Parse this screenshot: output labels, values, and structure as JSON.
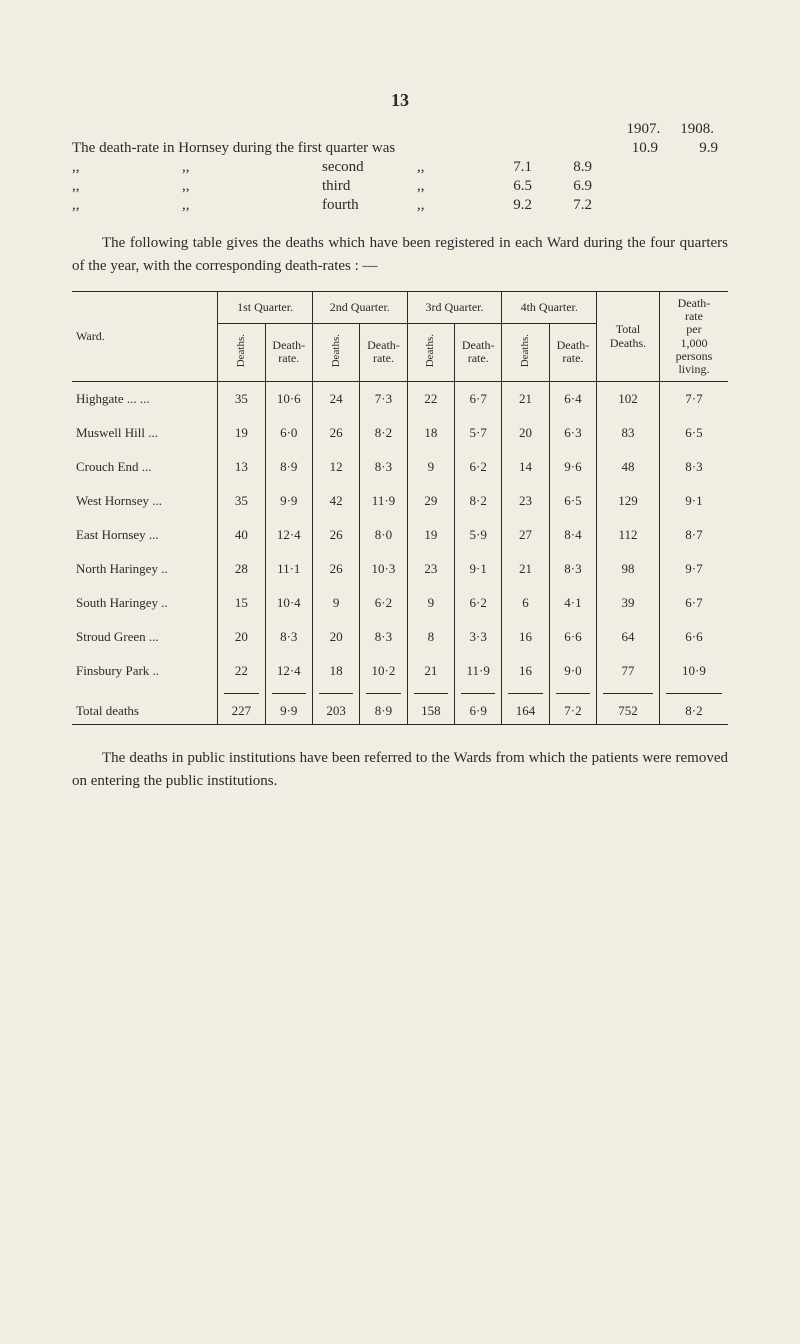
{
  "page_number": "13",
  "years": {
    "y1": "1907.",
    "y2": "1908."
  },
  "intro_first": "The death-rate in Hornsey during the first quarter was",
  "intro_rows": [
    {
      "left": ",,",
      "quote": ",,",
      "label": "second",
      "quote2": ",,",
      "v1": "7.1",
      "v2": "8.9"
    },
    {
      "left": ",,",
      "quote": ",,",
      "label": "third",
      "quote2": ",,",
      "v1": "6.5",
      "v2": "6.9"
    },
    {
      "left": ",,",
      "quote": ",,",
      "label": "fourth",
      "quote2": ",,",
      "v1": "9.2",
      "v2": "7.2"
    }
  ],
  "first_values": {
    "v1": "10.9",
    "v2": "9.9"
  },
  "para1": "The following table gives the deaths which have been registered in each Ward during the four quarters of the year, with the corresponding death-rates : —",
  "table": {
    "ward_header": "Ward.",
    "quarter_headers": [
      "1st Quarter.",
      "2nd Quarter.",
      "3rd Quarter.",
      "4th Quarter."
    ],
    "sub_headers": {
      "deaths": "Deaths.",
      "rate": "Death-\nrate."
    },
    "total_header": "Total\nDeaths.",
    "dr_header": "Death-\nrate\nper\n1,000\npersons\nliving.",
    "rows": [
      {
        "ward": "Highgate ...     ...",
        "q1d": "35",
        "q1r": "10·6",
        "q2d": "24",
        "q2r": "7·3",
        "q3d": "22",
        "q3r": "6·7",
        "q4d": "21",
        "q4r": "6·4",
        "total": "102",
        "dr": "7·7"
      },
      {
        "ward": "Muswell Hill    ...",
        "q1d": "19",
        "q1r": "6·0",
        "q2d": "26",
        "q2r": "8·2",
        "q3d": "18",
        "q3r": "5·7",
        "q4d": "20",
        "q4r": "6·3",
        "total": "83",
        "dr": "6·5"
      },
      {
        "ward": "Crouch End      ...",
        "q1d": "13",
        "q1r": "8·9",
        "q2d": "12",
        "q2r": "8·3",
        "q3d": "9",
        "q3r": "6·2",
        "q4d": "14",
        "q4r": "9·6",
        "total": "48",
        "dr": "8·3"
      },
      {
        "ward": "West Hornsey  ...",
        "q1d": "35",
        "q1r": "9·9",
        "q2d": "42",
        "q2r": "11·9",
        "q3d": "29",
        "q3r": "8·2",
        "q4d": "23",
        "q4r": "6·5",
        "total": "129",
        "dr": "9·1"
      },
      {
        "ward": "East Hornsey   ...",
        "q1d": "40",
        "q1r": "12·4",
        "q2d": "26",
        "q2r": "8·0",
        "q3d": "19",
        "q3r": "5·9",
        "q4d": "27",
        "q4r": "8·4",
        "total": "112",
        "dr": "8·7"
      },
      {
        "ward": "North Haringey ..",
        "q1d": "28",
        "q1r": "11·1",
        "q2d": "26",
        "q2r": "10·3",
        "q3d": "23",
        "q3r": "9·1",
        "q4d": "21",
        "q4r": "8·3",
        "total": "98",
        "dr": "9·7"
      },
      {
        "ward": "South Haringey ..",
        "q1d": "15",
        "q1r": "10·4",
        "q2d": "9",
        "q2r": "6·2",
        "q3d": "9",
        "q3r": "6·2",
        "q4d": "6",
        "q4r": "4·1",
        "total": "39",
        "dr": "6·7"
      },
      {
        "ward": "Stroud Green    ...",
        "q1d": "20",
        "q1r": "8·3",
        "q2d": "20",
        "q2r": "8·3",
        "q3d": "8",
        "q3r": "3·3",
        "q4d": "16",
        "q4r": "6·6",
        "total": "64",
        "dr": "6·6"
      },
      {
        "ward": "Finsbury Park  ..",
        "q1d": "22",
        "q1r": "12·4",
        "q2d": "18",
        "q2r": "10·2",
        "q3d": "21",
        "q3r": "11·9",
        "q4d": "16",
        "q4r": "9·0",
        "total": "77",
        "dr": "10·9"
      }
    ],
    "total_row": {
      "label": "Total deaths",
      "q1d": "227",
      "q1r": "9·9",
      "q2d": "203",
      "q2r": "8·9",
      "q3d": "158",
      "q3r": "6·9",
      "q4d": "164",
      "q4r": "7·2",
      "total": "752",
      "dr": "8·2"
    }
  },
  "para2": "The deaths in public institutions have been referred to the Wards from which the patients were removed on entering the public institutions.",
  "style": {
    "background_color": "#f2ede3",
    "text_color": "#2a2a2a",
    "rule_color": "#2a2a2a",
    "body_fontsize_pt": 11,
    "table_fontsize_pt": 9
  }
}
